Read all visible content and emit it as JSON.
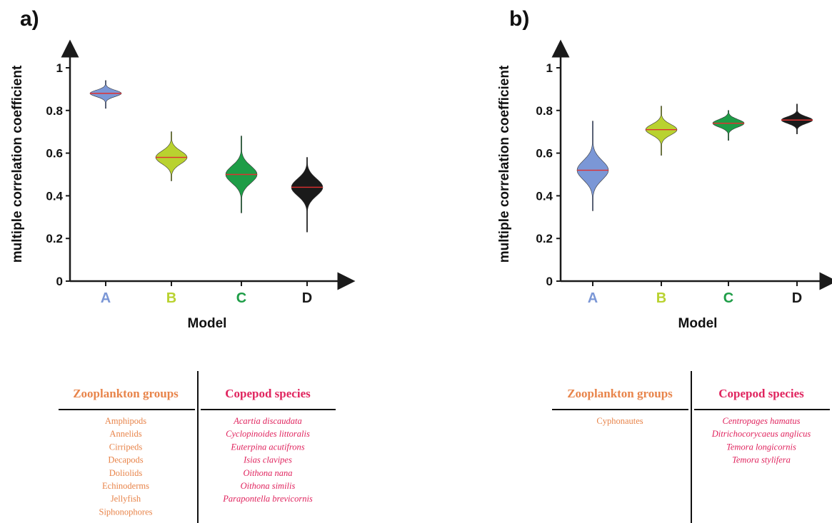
{
  "chart_data": [
    {
      "type": "violin",
      "panel_label": "a)",
      "xlabel": "Model",
      "ylabel": "multiple correlation coefficient",
      "ylim": [
        0,
        1
      ],
      "yticks": [
        "0",
        "0.2",
        "0.4",
        "0.6",
        "0.8",
        "1"
      ],
      "categories": [
        "A",
        "B",
        "C",
        "D"
      ],
      "colors": [
        "#7b97d6",
        "#b9d230",
        "#1e9d47",
        "#1a1a1a"
      ],
      "median_color": "#e03030",
      "series": [
        {
          "category": "A",
          "median": 0.88,
          "min": 0.81,
          "max": 0.94,
          "spread": 0.015
        },
        {
          "category": "B",
          "median": 0.58,
          "min": 0.47,
          "max": 0.7,
          "spread": 0.03
        },
        {
          "category": "C",
          "median": 0.5,
          "min": 0.32,
          "max": 0.68,
          "spread": 0.04
        },
        {
          "category": "D",
          "median": 0.44,
          "min": 0.23,
          "max": 0.58,
          "spread": 0.04
        }
      ]
    },
    {
      "type": "violin",
      "panel_label": "b)",
      "xlabel": "Model",
      "ylabel": "multiple correlation coefficient",
      "ylim": [
        0,
        1
      ],
      "yticks": [
        "0",
        "0.2",
        "0.4",
        "0.6",
        "0.8",
        "1"
      ],
      "categories": [
        "A",
        "B",
        "C",
        "D"
      ],
      "colors": [
        "#7b97d6",
        "#b9d230",
        "#1e9d47",
        "#1a1a1a"
      ],
      "median_color": "#e03030",
      "series": [
        {
          "category": "A",
          "median": 0.52,
          "min": 0.33,
          "max": 0.75,
          "spread": 0.045
        },
        {
          "category": "B",
          "median": 0.71,
          "min": 0.59,
          "max": 0.82,
          "spread": 0.025
        },
        {
          "category": "C",
          "median": 0.74,
          "min": 0.66,
          "max": 0.8,
          "spread": 0.018
        },
        {
          "category": "D",
          "median": 0.755,
          "min": 0.69,
          "max": 0.83,
          "spread": 0.016
        }
      ]
    }
  ],
  "tables": [
    {
      "head_left": "Zooplankton groups",
      "head_right": "Copepod species",
      "left_items": [
        "Amphipods",
        "Annelids",
        "Cirripeds",
        "Decapods",
        "Doliolids",
        "Echinoderms",
        "Jellyfish",
        "Siphonophores"
      ],
      "right_items": [
        "Acartia discaudata",
        "Cyclopinoides littoralis",
        "Euterpina acutifrons",
        "Isias clavipes",
        "Oithona nana",
        "Oithona similis",
        "Parapontella brevicornis"
      ]
    },
    {
      "head_left": "Zooplankton groups",
      "head_right": "Copepod species",
      "left_items": [
        "Cyphonautes"
      ],
      "right_items": [
        "Centropages hamatus",
        "Ditrichocorycaeus anglicus",
        "Temora longicornis",
        "Temora stylifera"
      ]
    }
  ],
  "colors": {
    "zooplankton_text": "#e8844a",
    "copepod_text": "#e0245e",
    "axis": "#1a1a1a"
  }
}
